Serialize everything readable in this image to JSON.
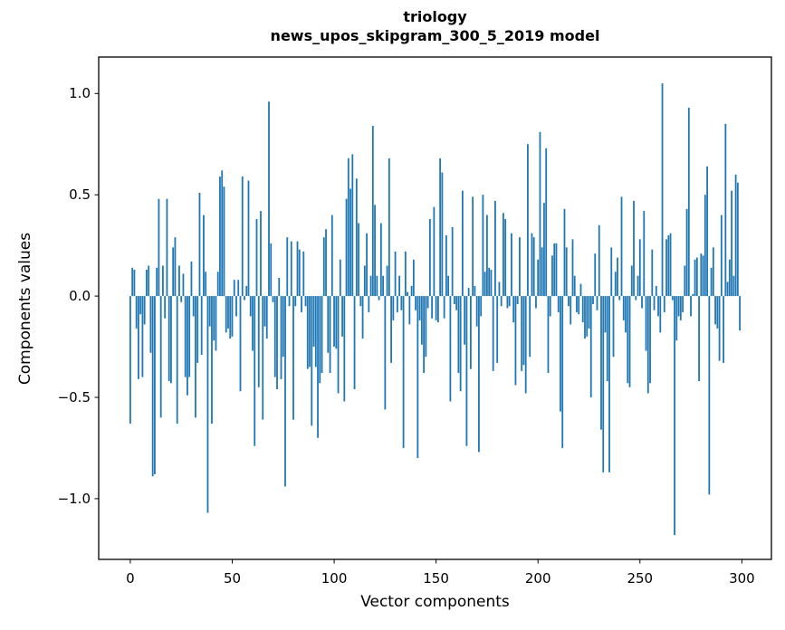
{
  "figure": {
    "title_line1": "triology",
    "title_line2": "news_upos_skipgram_300_5_2019 model",
    "xlabel": "Vector components",
    "ylabel": "Components values",
    "background": "#ffffff",
    "axis_color": "#000000"
  },
  "chart_data": {
    "type": "bar",
    "title": "triology",
    "subtitle": "news_upos_skipgram_300_5_2019 model",
    "xlabel": "Vector components",
    "ylabel": "Components values",
    "bar_color": "#1f77b4",
    "grid": false,
    "legend": null,
    "xlim": [
      -15.5,
      314.5
    ],
    "ylim": [
      -1.3,
      1.18
    ],
    "x_ticks": [
      0,
      50,
      100,
      150,
      200,
      250,
      300
    ],
    "x_tick_labels": [
      "0",
      "50",
      "100",
      "150",
      "200",
      "250",
      "300"
    ],
    "y_ticks": [
      1.0,
      0.5,
      0.0,
      -0.5,
      -1.0
    ],
    "y_tick_labels": [
      "1.0",
      "0.5",
      "0.0",
      "−0.5",
      "−1.0"
    ],
    "n_components": 300,
    "values": [
      -0.63,
      0.14,
      0.13,
      -0.16,
      -0.41,
      -0.09,
      -0.4,
      -0.14,
      0.13,
      0.15,
      -0.28,
      -0.89,
      -0.88,
      0.14,
      0.48,
      -0.6,
      0.15,
      -0.11,
      0.48,
      -0.42,
      -0.43,
      0.24,
      0.29,
      -0.63,
      0.15,
      -0.03,
      0.11,
      -0.4,
      -0.49,
      -0.4,
      0.17,
      -0.1,
      -0.6,
      -0.33,
      0.51,
      -0.29,
      0.4,
      0.12,
      -1.07,
      -0.15,
      -0.63,
      -0.22,
      -0.27,
      0.12,
      0.59,
      0.62,
      0.54,
      -0.18,
      -0.16,
      -0.21,
      -0.2,
      0.08,
      -0.1,
      0.08,
      -0.47,
      0.59,
      -0.02,
      0.05,
      0.57,
      -0.1,
      -0.27,
      -0.74,
      0.38,
      -0.45,
      0.42,
      -0.61,
      -0.15,
      -0.21,
      0.96,
      0.26,
      -0.03,
      -0.4,
      -0.46,
      0.09,
      -0.41,
      -0.3,
      -0.94,
      0.29,
      -0.05,
      0.27,
      -0.61,
      -0.05,
      0.27,
      0.23,
      -0.08,
      0.22,
      -0.05,
      -0.36,
      -0.35,
      -0.64,
      -0.25,
      -0.35,
      -0.7,
      -0.43,
      -0.38,
      0.29,
      0.33,
      -0.28,
      -0.38,
      0.4,
      -0.25,
      -0.26,
      -0.48,
      0.18,
      -0.2,
      -0.52,
      0.48,
      0.68,
      0.53,
      0.7,
      -0.46,
      0.58,
      0.36,
      -0.05,
      -0.21,
      0.15,
      0.31,
      -0.08,
      0.1,
      0.84,
      0.45,
      0.1,
      -0.02,
      0.36,
      0.1,
      -0.56,
      0.15,
      0.68,
      -0.33,
      -0.12,
      0.22,
      -0.08,
      0.1,
      -0.07,
      -0.75,
      0.22,
      0.02,
      -0.14,
      0.05,
      0.18,
      -0.07,
      -0.8,
      -0.12,
      -0.24,
      -0.38,
      -0.3,
      -0.06,
      0.38,
      -0.11,
      0.44,
      -0.12,
      -0.13,
      0.68,
      0.61,
      -0.11,
      0.3,
      0.1,
      -0.52,
      0.34,
      -0.04,
      -0.07,
      -0.38,
      -0.47,
      0.52,
      -0.24,
      -0.74,
      0.04,
      -0.36,
      0.49,
      0.05,
      -0.15,
      -0.77,
      -0.1,
      0.5,
      0.12,
      0.4,
      0.14,
      0.13,
      -0.37,
      0.47,
      -0.33,
      0.07,
      -0.05,
      0.41,
      0.38,
      -0.06,
      -0.05,
      0.31,
      -0.13,
      -0.44,
      -0.04,
      0.29,
      -0.37,
      -0.34,
      -0.48,
      0.75,
      -0.3,
      0.31,
      0.29,
      -0.06,
      0.18,
      0.81,
      0.24,
      0.46,
      0.73,
      -0.38,
      -0.1,
      0.2,
      0.26,
      0.26,
      -0.08,
      -0.57,
      -0.75,
      0.43,
      0.24,
      -0.05,
      -0.14,
      0.28,
      0.1,
      -0.08,
      -0.09,
      0.06,
      -0.13,
      -0.21,
      -0.2,
      -0.16,
      -0.5,
      -0.04,
      0.21,
      -0.07,
      0.35,
      -0.66,
      -0.87,
      -0.18,
      -0.42,
      -0.87,
      0.24,
      -0.3,
      0.12,
      0.19,
      -0.02,
      0.49,
      -0.12,
      -0.18,
      -0.43,
      -0.45,
      0.15,
      0.47,
      -0.02,
      0.1,
      0.28,
      -0.06,
      0.42,
      -0.27,
      -0.48,
      -0.43,
      0.23,
      -0.07,
      0.05,
      -0.1,
      -0.18,
      1.05,
      -0.08,
      0.28,
      0.3,
      0.31,
      -0.02,
      -1.18,
      -0.22,
      -0.1,
      -0.12,
      -0.08,
      0.15,
      0.43,
      0.93,
      -0.1,
      0.01,
      0.18,
      0.19,
      -0.42,
      0.21,
      0.2,
      0.5,
      0.64,
      -0.98,
      0.14,
      0.24,
      -0.14,
      -0.16,
      -0.32,
      0.4,
      -0.33,
      0.85,
      0.07,
      0.18,
      0.52,
      0.1,
      0.6,
      0.56,
      -0.17
    ]
  }
}
